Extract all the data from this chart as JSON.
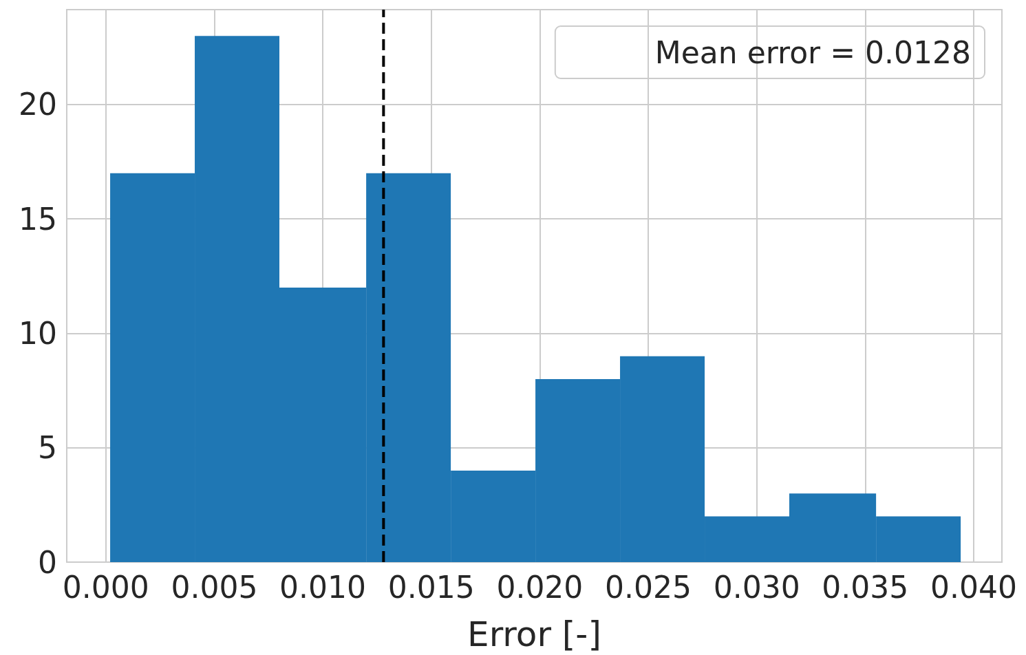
{
  "chart_data": {
    "type": "histogram",
    "xlabel": "Error [-]",
    "bins": [
      0.0002,
      0.0041,
      0.008,
      0.012,
      0.0159,
      0.0198,
      0.0237,
      0.0276,
      0.0315,
      0.0355,
      0.0394
    ],
    "values": [
      17,
      23,
      12,
      17,
      4,
      8,
      9,
      2,
      3,
      2
    ],
    "color": "#1f77b4",
    "xlim": [
      -0.0018,
      0.0413
    ],
    "xticks": [
      {
        "value": 0,
        "label": "0.000"
      },
      0.005,
      {
        "value": 0.01,
        "label": "0.010"
      },
      0.015,
      {
        "value": 0.02,
        "label": "0.020"
      },
      0.025,
      {
        "value": 0.03,
        "label": "0.030"
      },
      0.035,
      {
        "value": 0.04,
        "label": "0.040"
      }
    ],
    "ylim": [
      0,
      24.15
    ],
    "yticks": [
      0,
      5,
      10,
      15,
      20
    ],
    "ref_lines": [
      {
        "axis": "x",
        "value": 0.0128,
        "label": "Mean error = 0.0128",
        "color": "#000000",
        "line_style": "dashed"
      }
    ],
    "grid": true,
    "legend": "top right"
  }
}
